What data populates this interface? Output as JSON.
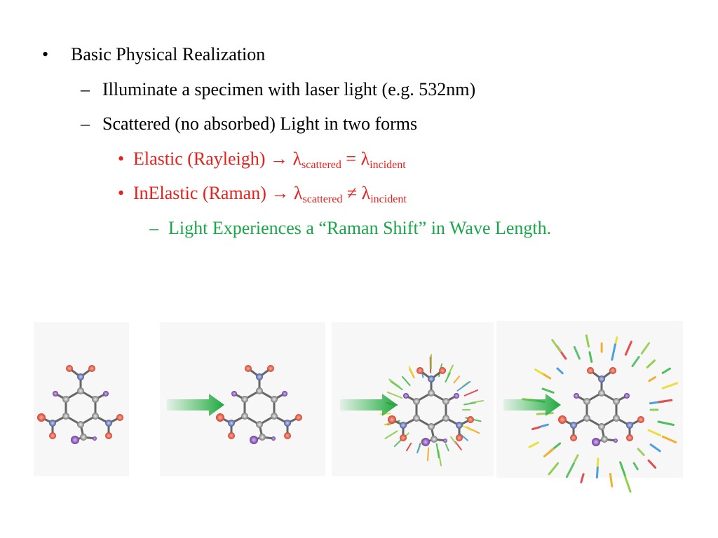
{
  "slide": {
    "bullet": {
      "marker": "•",
      "text": "Basic Physical Realization",
      "items": [
        {
          "marker": "–",
          "text": "Illuminate a specimen with laser light (e.g. 532nm)"
        },
        {
          "marker": "–",
          "text": "Scattered (no absorbed) Light in two forms",
          "items": [
            {
              "marker": "•",
              "lead": "Elastic (Rayleigh)  →",
              "symbol": "λ",
              "sub_a": "scattered",
              "relation": "=",
              "sub_b": "incident"
            },
            {
              "marker": "•",
              "lead": "InElastic (Raman)  →",
              "symbol": "λ",
              "sub_a": "scattered",
              "relation": "≠",
              "sub_b": "incident",
              "items": [
                {
                  "marker": "–",
                  "text": "Light Experiences a “Raman Shift” in Wave Length."
                }
              ]
            }
          ]
        }
      ]
    }
  }
}
